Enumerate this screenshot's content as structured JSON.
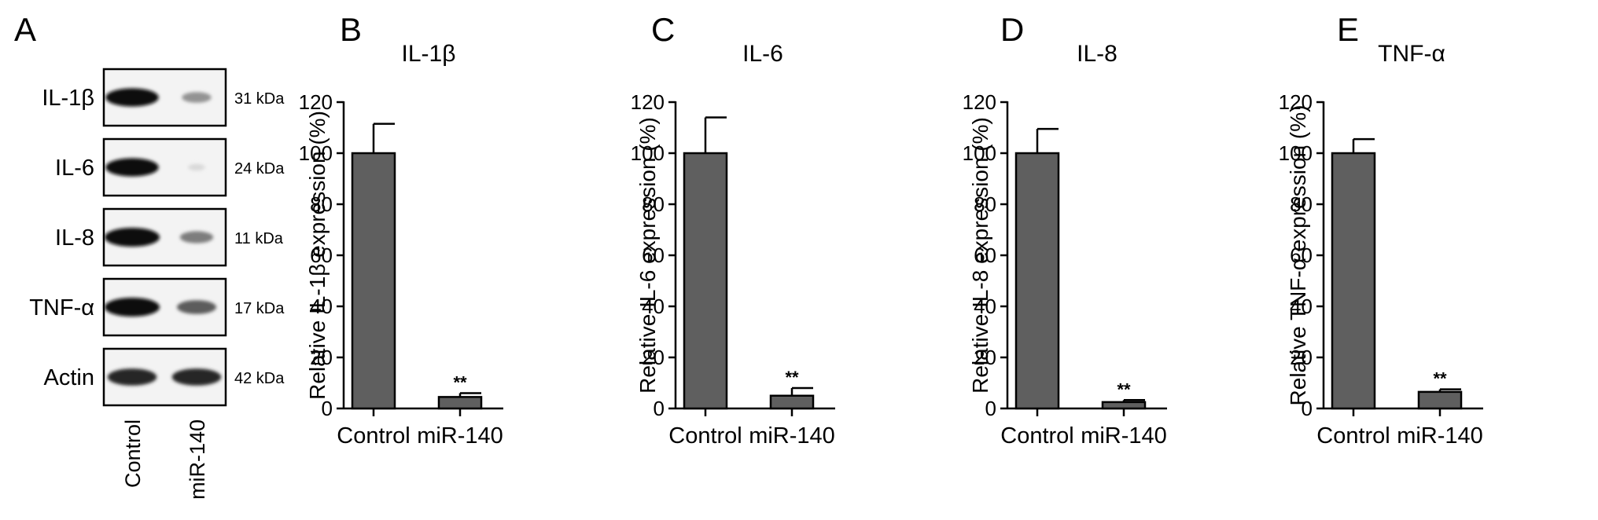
{
  "figure": {
    "blot": {
      "panel_letter": "A",
      "rows": [
        {
          "protein": "IL-1β",
          "kda": "31 kDa",
          "control_band": 0.95,
          "mir140_band": 0.35
        },
        {
          "protein": "IL-6",
          "kda": "24 kDa",
          "control_band": 0.95,
          "mir140_band": 0.03
        },
        {
          "protein": "IL-8",
          "kda": "11 kDa",
          "control_band": 1.0,
          "mir140_band": 0.45
        },
        {
          "protein": "TNF-α",
          "kda": "17 kDa",
          "control_band": 1.0,
          "mir140_band": 0.6
        },
        {
          "protein": "Actin",
          "kda": "42 kDa",
          "control_band": 0.85,
          "mir140_band": 0.85
        }
      ],
      "lanes": [
        "Control",
        "miR-140"
      ]
    }
  },
  "chart_data": [
    {
      "panel_letter": "B",
      "type": "bar",
      "title": "IL-1β",
      "ylabel": "Relative IL-1β expression (%)",
      "xlabel": "",
      "categories": [
        "Control",
        "miR-140"
      ],
      "values": [
        100,
        4.5
      ],
      "errors": [
        11.5,
        1.5
      ],
      "annotations": [
        "",
        "**"
      ],
      "ylim": [
        0,
        120
      ],
      "yticks": [
        0,
        20,
        40,
        60,
        80,
        100,
        120
      ],
      "bar_color": "#5f5f5f",
      "grid": false
    },
    {
      "panel_letter": "C",
      "type": "bar",
      "title": "IL-6",
      "ylabel": "Relative IL-6 expression (%)",
      "xlabel": "",
      "categories": [
        "Control",
        "miR-140"
      ],
      "values": [
        100,
        5
      ],
      "errors": [
        14,
        3
      ],
      "annotations": [
        "",
        "**"
      ],
      "ylim": [
        0,
        120
      ],
      "yticks": [
        0,
        20,
        40,
        60,
        80,
        100,
        120
      ],
      "bar_color": "#5f5f5f",
      "grid": false
    },
    {
      "panel_letter": "D",
      "type": "bar",
      "title": "IL-8",
      "ylabel": "Relative IL-8 expression (%)",
      "xlabel": "",
      "categories": [
        "Control",
        "miR-140"
      ],
      "values": [
        100,
        2.5
      ],
      "errors": [
        9.5,
        0.8
      ],
      "annotations": [
        "",
        "**"
      ],
      "ylim": [
        0,
        120
      ],
      "yticks": [
        0,
        20,
        40,
        60,
        80,
        100,
        120
      ],
      "bar_color": "#5f5f5f",
      "grid": false
    },
    {
      "panel_letter": "E",
      "type": "bar",
      "title": "TNF-α",
      "ylabel": "Relative TNF-α expression (%)",
      "xlabel": "",
      "categories": [
        "Control",
        "miR-140"
      ],
      "values": [
        100,
        6.5
      ],
      "errors": [
        5.5,
        1
      ],
      "annotations": [
        "",
        "**"
      ],
      "ylim": [
        0,
        120
      ],
      "yticks": [
        0,
        20,
        40,
        60,
        80,
        100,
        120
      ],
      "bar_color": "#5f5f5f",
      "grid": false
    }
  ]
}
